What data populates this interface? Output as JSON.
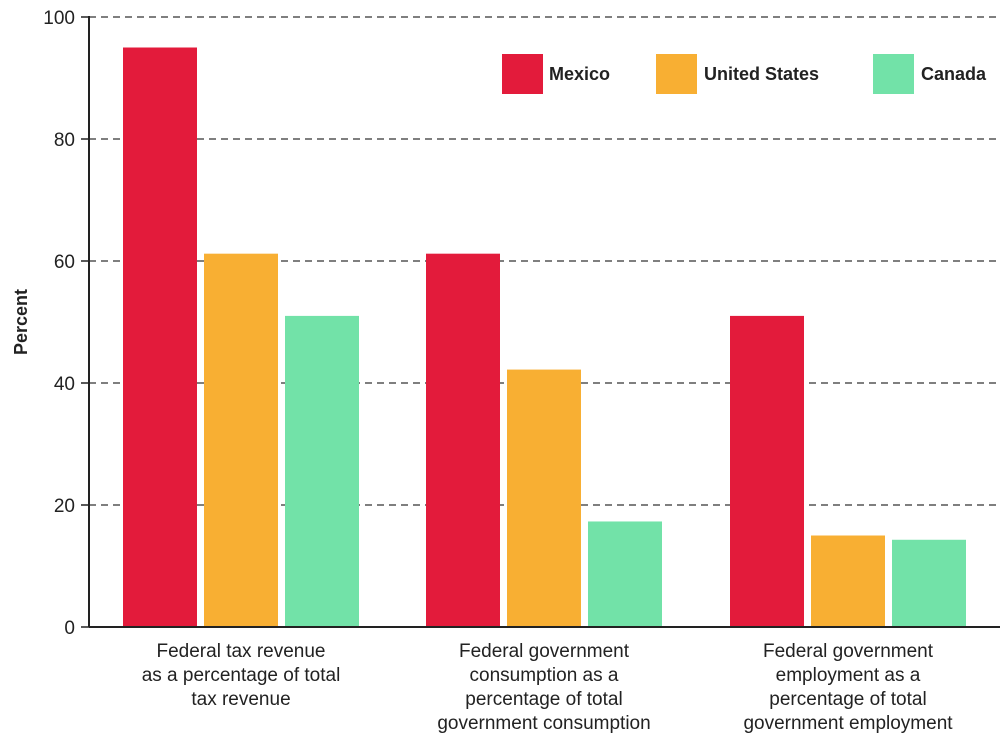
{
  "chart_data": {
    "type": "bar",
    "title": "",
    "xlabel": "",
    "ylabel": "Percent",
    "ylim": [
      0,
      100
    ],
    "yticks": [
      0,
      20,
      40,
      60,
      80,
      100
    ],
    "grid": true,
    "legend_position": "top-right",
    "categories": [
      [
        "Federal tax revenue",
        "as a percentage of total",
        "tax revenue"
      ],
      [
        "Federal government",
        "consumption as a",
        "percentage of total",
        "government consumption"
      ],
      [
        "Federal government",
        "employment as a",
        "percentage of total",
        "government employment"
      ]
    ],
    "series": [
      {
        "name": "Mexico",
        "color": "#E31B3B",
        "values": [
          95,
          61.2,
          51
        ]
      },
      {
        "name": "United States",
        "color": "#F8AF33",
        "values": [
          61.2,
          42.2,
          15
        ]
      },
      {
        "name": "Canada",
        "color": "#72E2A8",
        "values": [
          51,
          17.3,
          14.3
        ]
      }
    ]
  }
}
